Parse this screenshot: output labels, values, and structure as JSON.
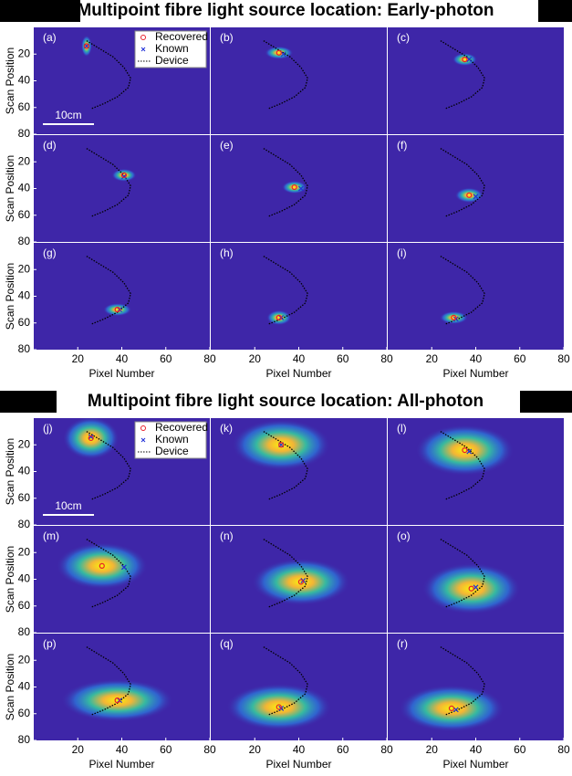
{
  "chart_data": [
    {
      "type": "heatmap",
      "title": "Multipoint fibre light source location: Early-photon",
      "xlabel": "Pixel Number",
      "ylabel": "Scan Position",
      "xlim": [
        0,
        80
      ],
      "ylim": [
        80,
        0
      ],
      "xticks": [
        20,
        40,
        60,
        80
      ],
      "yticks": [
        20,
        40,
        60,
        80
      ],
      "scale_label": "10cm",
      "panels": [
        "(a)",
        "(b)",
        "(c)",
        "(d)",
        "(e)",
        "(f)",
        "(g)",
        "(h)",
        "(i)"
      ],
      "spread_x": [
        1.5,
        4,
        3.5,
        3.5,
        3.5,
        4,
        4,
        3.5,
        4
      ],
      "spread_y": [
        5,
        3,
        3,
        3,
        3,
        3.5,
        3,
        3.5,
        3
      ],
      "series": [
        {
          "name": "Recovered",
          "color": "#e8202a",
          "x": [
            24,
            31,
            35,
            41,
            38,
            37,
            38,
            31,
            30
          ],
          "y": [
            14,
            19,
            24,
            30,
            39,
            45,
            50,
            56,
            56
          ]
        },
        {
          "name": "Known",
          "color": "#1f2fd8",
          "x": [
            24,
            33,
            37,
            41,
            41,
            40,
            39,
            32,
            31
          ],
          "y": [
            14,
            20,
            24,
            31,
            40,
            46,
            50,
            56,
            57
          ]
        }
      ],
      "device": {
        "name": "Device",
        "x": [
          24,
          30,
          36,
          41,
          44,
          43,
          38,
          32,
          26
        ],
        "y": [
          10,
          16,
          22,
          30,
          38,
          45,
          52,
          57,
          61
        ]
      }
    },
    {
      "type": "heatmap",
      "title": "Multipoint fibre light source location: All-photon",
      "xlabel": "Pixel Number",
      "ylabel": "Scan Position",
      "xlim": [
        0,
        80
      ],
      "ylim": [
        80,
        0
      ],
      "xticks": [
        20,
        40,
        60,
        80
      ],
      "yticks": [
        20,
        40,
        60,
        80
      ],
      "scale_label": "10cm",
      "panels": [
        "(j)",
        "(k)",
        "(l)",
        "(m)",
        "(n)",
        "(o)",
        "(p)",
        "(q)",
        "(r)"
      ],
      "spread_x": [
        8,
        14,
        14,
        13,
        14,
        14,
        16,
        15,
        15
      ],
      "spread_y": [
        10,
        12,
        12,
        11,
        11,
        12,
        10,
        11,
        11
      ],
      "series": [
        {
          "name": "Recovered",
          "color": "#e8202a",
          "x": [
            26,
            32,
            35,
            31,
            41,
            38,
            38,
            31,
            29
          ],
          "y": [
            15,
            20,
            24,
            30,
            42,
            47,
            50,
            55,
            56
          ]
        },
        {
          "name": "Known",
          "color": "#1f2fd8",
          "x": [
            26,
            32,
            37,
            41,
            42,
            40,
            39,
            32,
            31
          ],
          "y": [
            14,
            20,
            25,
            31,
            41,
            46,
            50,
            56,
            57
          ]
        }
      ],
      "device": {
        "name": "Device",
        "x": [
          24,
          30,
          36,
          41,
          44,
          43,
          38,
          32,
          26
        ],
        "y": [
          10,
          16,
          22,
          30,
          38,
          45,
          52,
          57,
          61
        ]
      }
    }
  ]
}
